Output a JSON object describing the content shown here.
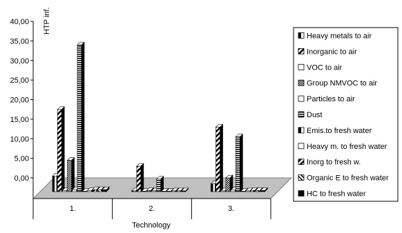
{
  "chart_data": {
    "type": "bar",
    "ylabel": "HTP inf.",
    "xlabel": "Technology",
    "ylim": [
      0,
      40
    ],
    "ytick_step": 5,
    "ytick_labels": [
      "0,00",
      "5,00",
      "10,00",
      "15,00",
      "20,00",
      "25,00",
      "30,00",
      "35,00",
      "40,00"
    ],
    "categories": [
      "1.",
      "2.",
      "3."
    ],
    "legend_position": "right",
    "series": [
      {
        "name": "Heavy metals to air",
        "values": [
          4.0,
          0.2,
          2.0
        ],
        "pattern": "halfleft"
      },
      {
        "name": "Inorganic to air",
        "values": [
          21.0,
          6.5,
          16.5
        ],
        "pattern": "diagonal"
      },
      {
        "name": "VOC to air",
        "values": [
          0.3,
          0.1,
          0.2
        ],
        "pattern": "white"
      },
      {
        "name": "Group NMVOC to air",
        "values": [
          8.0,
          0.3,
          3.5
        ],
        "pattern": "checker"
      },
      {
        "name": "Particles to air",
        "values": [
          0.5,
          0.2,
          0.4
        ],
        "pattern": "white"
      },
      {
        "name": "Dust",
        "values": [
          37.5,
          3.2,
          14.0
        ],
        "pattern": "hlines"
      },
      {
        "name": "Emis.to fresh water",
        "values": [
          0.1,
          0.1,
          0.1
        ],
        "pattern": "halfleft"
      },
      {
        "name": "Heavy m. to fresh water",
        "values": [
          0.3,
          0.1,
          0.2
        ],
        "pattern": "white"
      },
      {
        "name": "Inorg to fresh w.",
        "values": [
          0.5,
          0.2,
          0.3
        ],
        "pattern": "diagonal"
      },
      {
        "name": "Organic E to fresh water",
        "values": [
          0.5,
          0.2,
          0.3
        ],
        "pattern": "diagonal2"
      },
      {
        "name": "HC to fresh water",
        "values": [
          0.5,
          0.2,
          0.3
        ],
        "pattern": "black"
      }
    ],
    "colors": {
      "axis": "#000000",
      "floor": "#c0c0c0",
      "background": "#ffffff",
      "bar_fill": "#ffffff",
      "bar_side": "#000000"
    }
  }
}
